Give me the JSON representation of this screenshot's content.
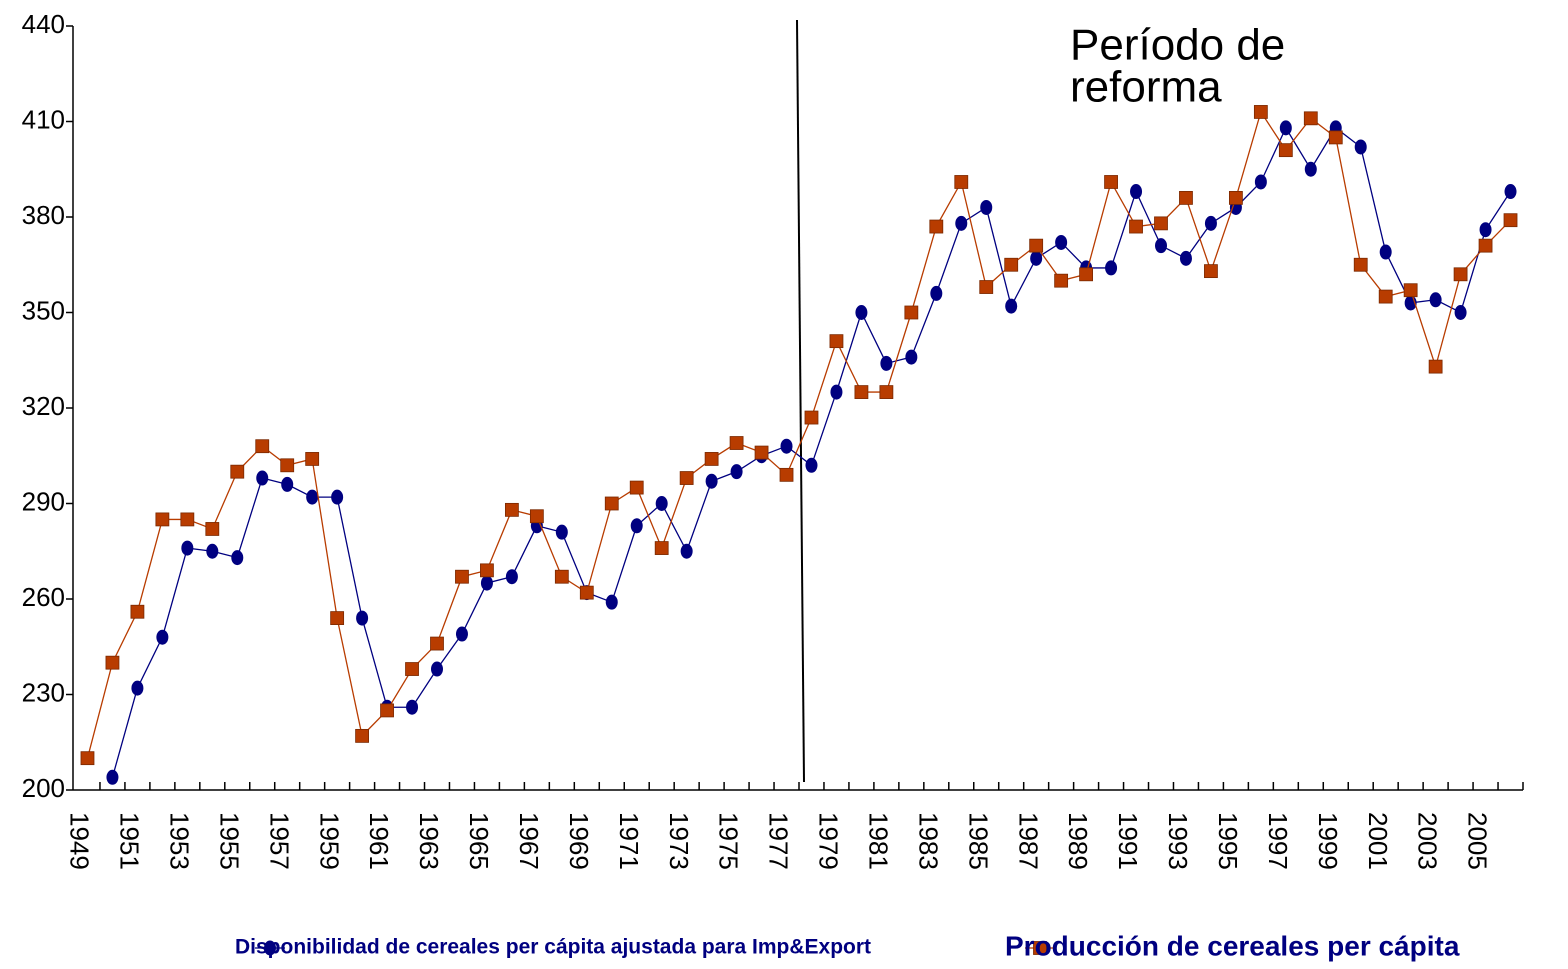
{
  "chart_data": {
    "type": "line",
    "annotation": [
      "Período de",
      "reforma"
    ],
    "categories": [
      "1949",
      null,
      "1951",
      null,
      "1953",
      null,
      "1955",
      null,
      "1957",
      null,
      "1959",
      null,
      "1961",
      null,
      "1963",
      null,
      "1965",
      null,
      "1967",
      null,
      "1969",
      null,
      "1971",
      null,
      "1973",
      null,
      "1975",
      null,
      "1977",
      null,
      "1979",
      null,
      "1981",
      null,
      "1983",
      null,
      "1985",
      null,
      "1987",
      null,
      "1989",
      null,
      "1991",
      null,
      "1993",
      null,
      "1995",
      null,
      "1997",
      null,
      "1999",
      null,
      "2001",
      null,
      "2003",
      null,
      "2005",
      null
    ],
    "series": [
      {
        "name": "Disponibilidad  de cereales  per cápita ajustada para Imp&Export",
        "color": "#000080",
        "marker": "circle",
        "values": [
          null,
          204,
          232,
          248,
          276,
          275,
          273,
          298,
          296,
          292,
          292,
          254,
          226,
          226,
          238,
          249,
          265,
          267,
          283,
          281,
          262,
          259,
          283,
          290,
          275,
          297,
          300,
          305,
          308,
          302,
          325,
          350,
          334,
          336,
          356,
          378,
          383,
          352,
          367,
          372,
          364,
          364,
          388,
          371,
          367,
          378,
          383,
          391,
          408,
          395,
          408,
          402,
          369,
          353,
          354,
          350,
          376,
          388
        ]
      },
      {
        "name": "Producción de cereales per cápita",
        "color": "#b83c00",
        "marker": "square",
        "values": [
          210,
          240,
          256,
          285,
          285,
          282,
          300,
          308,
          302,
          304,
          254,
          217,
          225,
          238,
          246,
          267,
          269,
          288,
          286,
          267,
          262,
          290,
          295,
          276,
          298,
          304,
          309,
          306,
          299,
          317,
          341,
          325,
          325,
          350,
          377,
          391,
          358,
          365,
          371,
          360,
          362,
          391,
          377,
          378,
          386,
          363,
          386,
          413,
          401,
          411,
          405,
          365,
          355,
          357,
          333,
          362,
          371,
          379
        ]
      }
    ],
    "ylim": [
      200,
      440
    ],
    "yticks": [
      200,
      230,
      260,
      290,
      320,
      350,
      380,
      410,
      440
    ],
    "grid": false,
    "legend": "bottom"
  }
}
